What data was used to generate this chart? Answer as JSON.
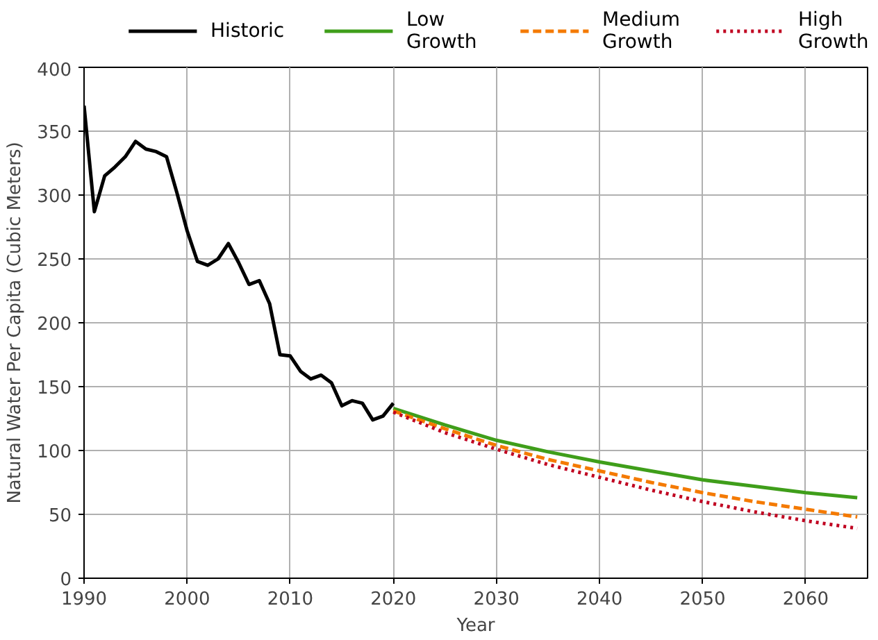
{
  "chart_data": {
    "type": "line",
    "xlabel": "Year",
    "ylabel": "Natural Water Per Capita (Cubic Meters)",
    "xlim": [
      1990,
      2066
    ],
    "ylim": [
      0,
      400
    ],
    "xticks": [
      1990,
      2000,
      2010,
      2020,
      2030,
      2040,
      2050,
      2060
    ],
    "yticks": [
      0,
      50,
      100,
      150,
      200,
      250,
      300,
      350,
      400
    ],
    "grid": true,
    "legend": "top",
    "line_style": "solid",
    "series": [
      {
        "name": "Historic",
        "color": "#000000",
        "x": [
          1990,
          1991,
          1992,
          1993,
          1994,
          1995,
          1996,
          1997,
          1998,
          1999,
          2000,
          2001,
          2002,
          2003,
          2004,
          2005,
          2006,
          2007,
          2008,
          2009,
          2010,
          2011,
          2012,
          2013,
          2014,
          2015,
          2016,
          2017,
          2018,
          2019,
          2020
        ],
        "values": [
          370,
          287,
          315,
          322,
          330,
          342,
          336,
          334,
          330,
          302,
          272,
          248,
          245,
          250,
          262,
          247,
          230,
          233,
          215,
          175,
          174,
          162,
          156,
          159,
          153,
          135,
          139,
          137,
          124,
          127,
          137
        ]
      },
      {
        "name": "Low\nGrowth",
        "color": "#3f9e1a",
        "line_style": "solid",
        "x": [
          2020,
          2025,
          2030,
          2035,
          2040,
          2045,
          2050,
          2055,
          2060,
          2065
        ],
        "values": [
          133,
          120,
          108,
          99,
          91,
          84,
          77,
          72,
          67,
          63
        ]
      },
      {
        "name": "Medium\nGrowth",
        "color": "#f47a00",
        "line_style": "dashed",
        "x": [
          2020,
          2025,
          2030,
          2035,
          2040,
          2045,
          2050,
          2055,
          2060,
          2065
        ],
        "values": [
          131,
          117,
          104,
          93,
          84,
          75,
          67,
          60,
          54,
          48
        ]
      },
      {
        "name": "High\nGrowth",
        "color": "#c00020",
        "line_style": "dotted",
        "x": [
          2020,
          2025,
          2030,
          2035,
          2040,
          2045,
          2050,
          2055,
          2060,
          2065
        ],
        "values": [
          130,
          114,
          101,
          89,
          79,
          69,
          60,
          52,
          45,
          39
        ]
      }
    ]
  }
}
